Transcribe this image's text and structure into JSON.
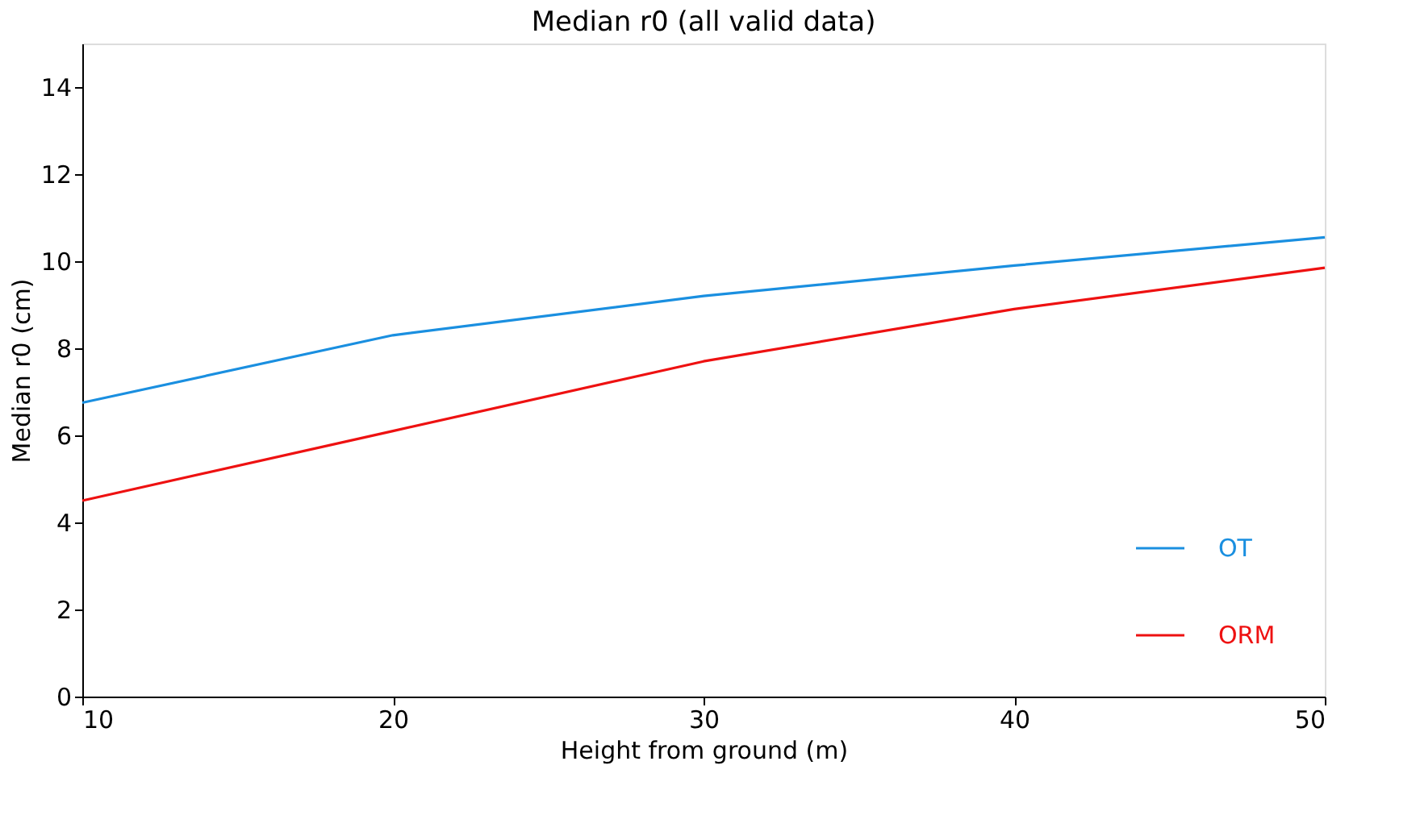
{
  "chart_data": {
    "type": "line",
    "title": "Median r0 (all valid data)",
    "xlabel": "Height from ground (m)",
    "ylabel": "Median r0 (cm)",
    "x": [
      10,
      20,
      30,
      40,
      50
    ],
    "series": [
      {
        "name": "OT",
        "color": "#1a8fe0",
        "values": [
          6.75,
          8.3,
          9.2,
          9.9,
          10.55
        ]
      },
      {
        "name": "ORM",
        "color": "#ee1111",
        "values": [
          4.5,
          6.1,
          7.7,
          8.9,
          9.85
        ]
      }
    ],
    "xlim": [
      10,
      50
    ],
    "xticks": [
      10,
      20,
      30,
      40,
      50
    ],
    "ylim": [
      0,
      15
    ],
    "yticks": [
      0,
      2,
      4,
      6,
      8,
      10,
      12,
      14
    ],
    "grid": false,
    "legend": "bottom right",
    "marker": "none",
    "line_style": "solid"
  }
}
